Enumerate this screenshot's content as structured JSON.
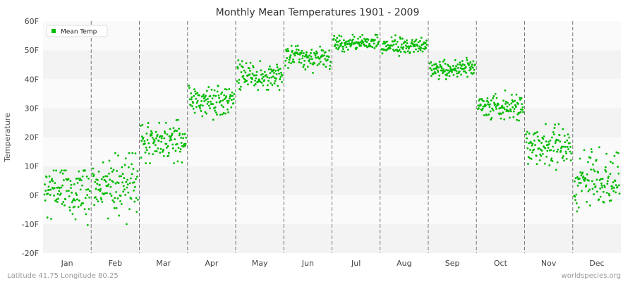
{
  "chart_data": {
    "type": "scatter",
    "title": "Monthly Mean Temperatures 1901 - 2009",
    "ylabel": "Temperature",
    "xlabel": "",
    "ylim": [
      -20,
      60
    ],
    "yticks": [
      {
        "value": -20,
        "label": "-20F"
      },
      {
        "value": -10,
        "label": "-10F"
      },
      {
        "value": 0,
        "label": "0F"
      },
      {
        "value": 10,
        "label": "10F"
      },
      {
        "value": 20,
        "label": "20F"
      },
      {
        "value": 30,
        "label": "30F"
      },
      {
        "value": 40,
        "label": "40F"
      },
      {
        "value": 50,
        "label": "50F"
      },
      {
        "value": 60,
        "label": "60F"
      }
    ],
    "categories": [
      "Jan",
      "Feb",
      "Mar",
      "Apr",
      "May",
      "Jun",
      "Jul",
      "Aug",
      "Sep",
      "Oct",
      "Nov",
      "Dec"
    ],
    "grid": "horizontal bands, dashed month separators",
    "legend": {
      "position": "top-left"
    },
    "series": [
      {
        "name": "Mean Temp",
        "color": "#00bb00",
        "years": [
          1901,
          2009
        ],
        "monthly_mean": [
          1.5,
          4.0,
          18.5,
          33.0,
          41.0,
          47.5,
          52.5,
          51.5,
          43.5,
          30.5,
          16.5,
          4.5
        ],
        "monthly_spread": [
          5.0,
          5.5,
          3.5,
          3.0,
          2.5,
          2.0,
          1.5,
          1.5,
          1.5,
          2.0,
          3.5,
          5.0
        ],
        "monthly_min": [
          -10.5,
          -10.0,
          11.0,
          26.0,
          36.0,
          42.0,
          48.5,
          48.0,
          40.0,
          25.0,
          7.0,
          -8.5
        ],
        "monthly_max": [
          8.5,
          14.5,
          26.0,
          38.5,
          46.5,
          51.5,
          57.0,
          56.0,
          48.0,
          37.0,
          24.5,
          16.5
        ]
      }
    ]
  },
  "footer": {
    "left": "Latitude 41.75 Longitude 80.25",
    "right": "worldspecies.org"
  }
}
